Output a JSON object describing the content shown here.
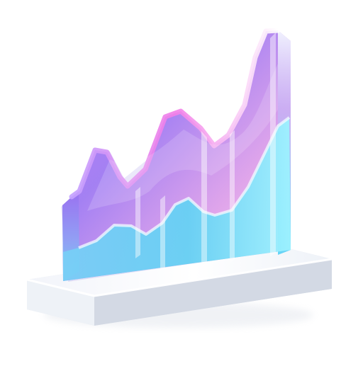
{
  "illustration": {
    "subject": "3d-glass-area-chart-icon",
    "colors": {
      "background": "#ffffff",
      "purple": "#a86df2",
      "violet": "#8f63ee",
      "pink": "#e9a9df",
      "magenta": "#d16bdf",
      "cyan": "#63dcf2",
      "blue": "#6bb8f4",
      "base_top": "#f4f6fb",
      "base_side": "#d8deea",
      "base_shadow": "#b8c1d3"
    }
  }
}
